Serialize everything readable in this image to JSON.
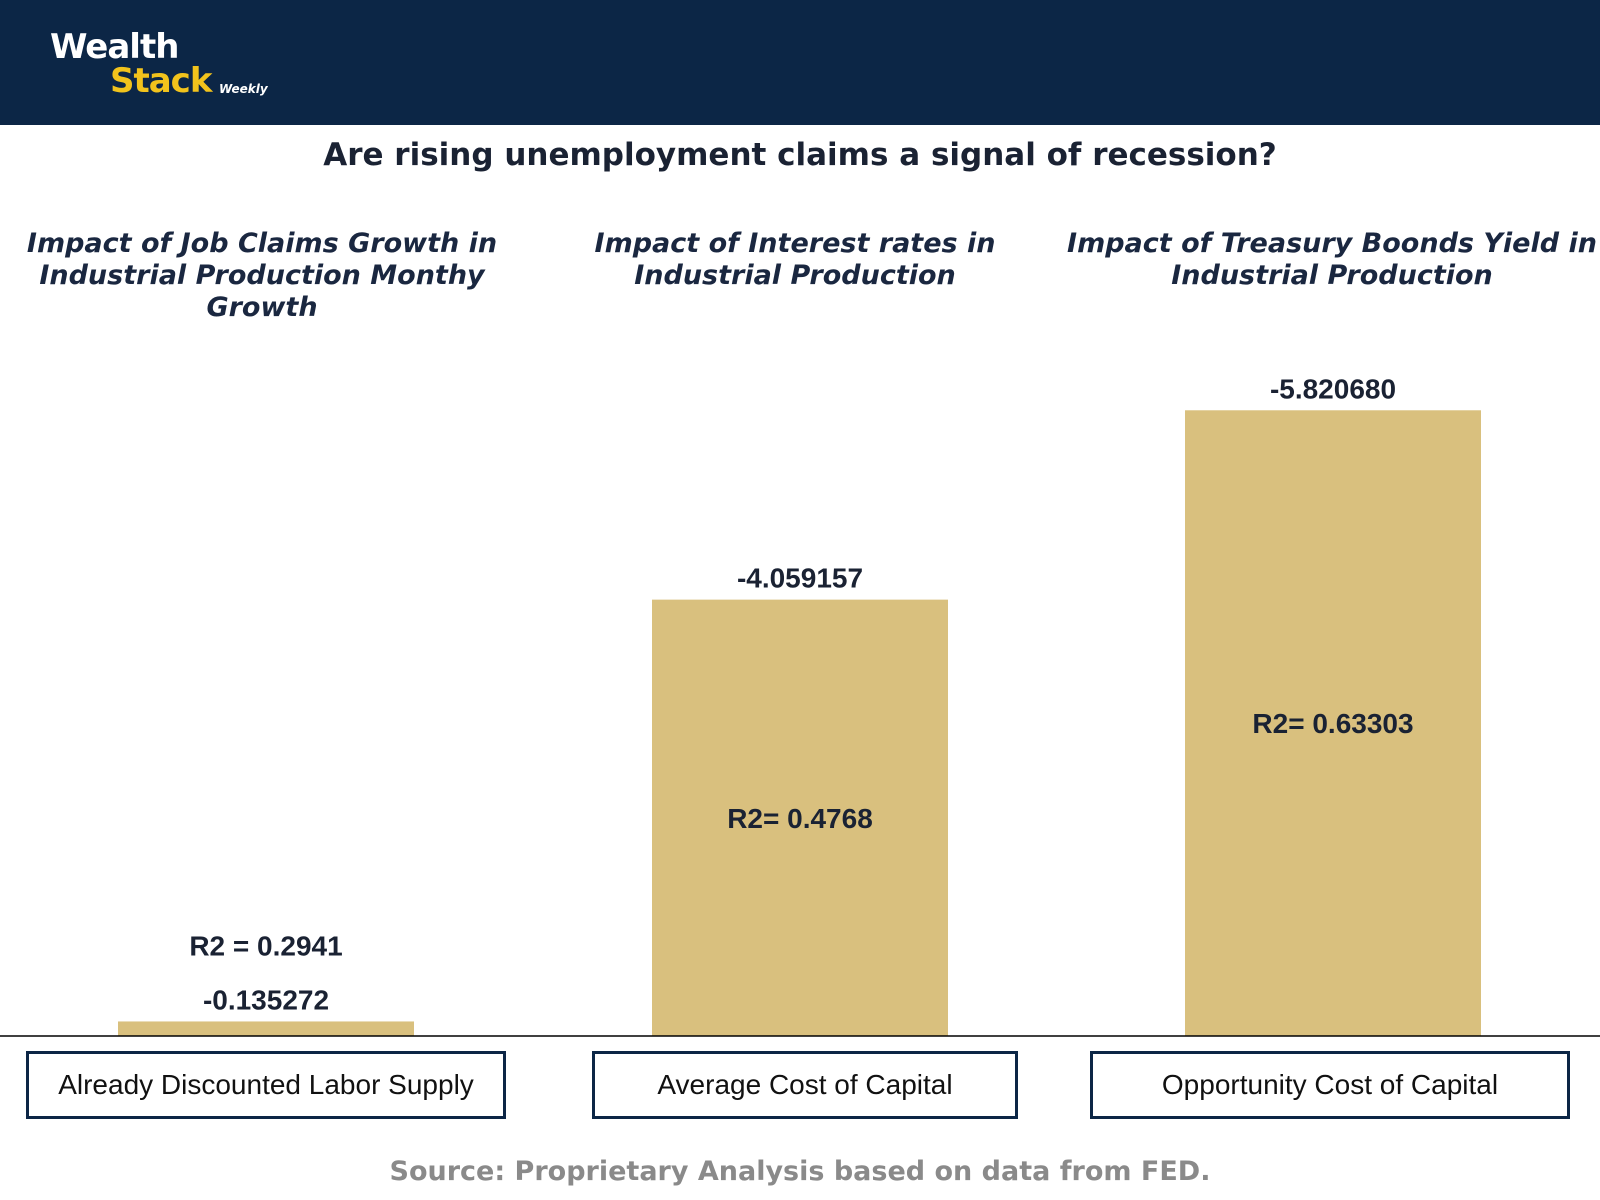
{
  "header": {
    "logo": {
      "line1": "Wealth",
      "line2": "Stack",
      "line3": "Weekly"
    }
  },
  "title": "Are rising unemployment claims a signal of recession?",
  "source": "Source: Proprietary Analysis based on data from FED.",
  "colors": {
    "header_bg": "#0c2646",
    "logo_accent": "#f2c31c",
    "bar": "#d9c07e",
    "box_border": "#0c2646",
    "label_text": "#1a2233"
  },
  "chart_data": {
    "type": "bar",
    "title": "Are rising unemployment claims a signal of recession?",
    "categories": [
      "Already Discounted Labor Supply",
      "Average Cost of Capital",
      "Opportunity Cost of Capital"
    ],
    "panel_titles": [
      [
        "Impact of Job Claims Growth in",
        "Industrial Production Monthy Growth"
      ],
      [
        "Impact of Interest rates in",
        "Industrial Production"
      ],
      [
        "Impact of Treasury Boonds Yield in",
        "Industrial Production"
      ]
    ],
    "values": [
      -0.135272,
      -4.059157,
      -5.82068
    ],
    "value_labels": [
      "-0.135272",
      "-4.059157",
      "-5.820680"
    ],
    "r2_labels": [
      "R2 = 0.2941",
      "R2= 0.4768",
      "R2= 0.63303"
    ],
    "r2_position": [
      "above",
      "inside",
      "inside"
    ],
    "bar_direction": "magnitude upward",
    "ylim": [
      0,
      -6.4
    ],
    "grid": false,
    "legend": "none",
    "xlabel": "",
    "ylabel": ""
  }
}
